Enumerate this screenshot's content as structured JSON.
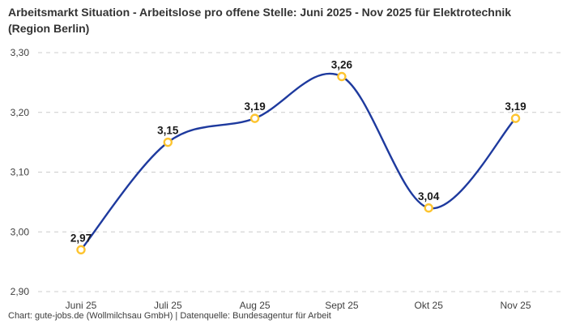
{
  "header": {
    "title": "Arbeitsmarkt Situation - Arbeitslose pro offene Stelle: Juni 2025 - Nov 2025 für Elektrotechnik (Region Berlin)"
  },
  "footer": {
    "attribution": "Chart: gute-jobs.de (Wollmilchsau GmbH) | Datenquelle: Bundesagentur für Arbeit"
  },
  "chart_data": {
    "type": "line",
    "title": "Arbeitsmarkt Situation - Arbeitslose pro offene Stelle: Juni 2025 - Nov 2025 für Elektrotechnik (Region Berlin)",
    "categories": [
      "Juni 25",
      "Juli 25",
      "Aug 25",
      "Sept 25",
      "Okt 25",
      "Nov 25"
    ],
    "values": [
      2.97,
      3.15,
      3.19,
      3.26,
      3.04,
      3.19
    ],
    "point_labels": [
      "2,97",
      "3,15",
      "3,19",
      "3,26",
      "3,04",
      "3,19"
    ],
    "yticks": [
      {
        "value": 3.3,
        "label": "3,30"
      },
      {
        "value": 3.2,
        "label": "3,20"
      },
      {
        "value": 3.1,
        "label": "3,10"
      },
      {
        "value": 3.0,
        "label": "3,00"
      },
      {
        "value": 2.9,
        "label": "2,90"
      }
    ],
    "ylim": [
      2.9,
      3.3
    ],
    "xlabel": "",
    "ylabel": "",
    "grid": "horizontal-dashed",
    "legend": "none",
    "curve": "smooth",
    "style": {
      "line_color": "#1e3a9e",
      "marker_stroke": "#fdc42f",
      "marker_fill": "#ffffff",
      "grid_color": "#cccccc",
      "tick_text_color": "#3f3f3f",
      "point_label_color": "#1a1a1a"
    }
  }
}
